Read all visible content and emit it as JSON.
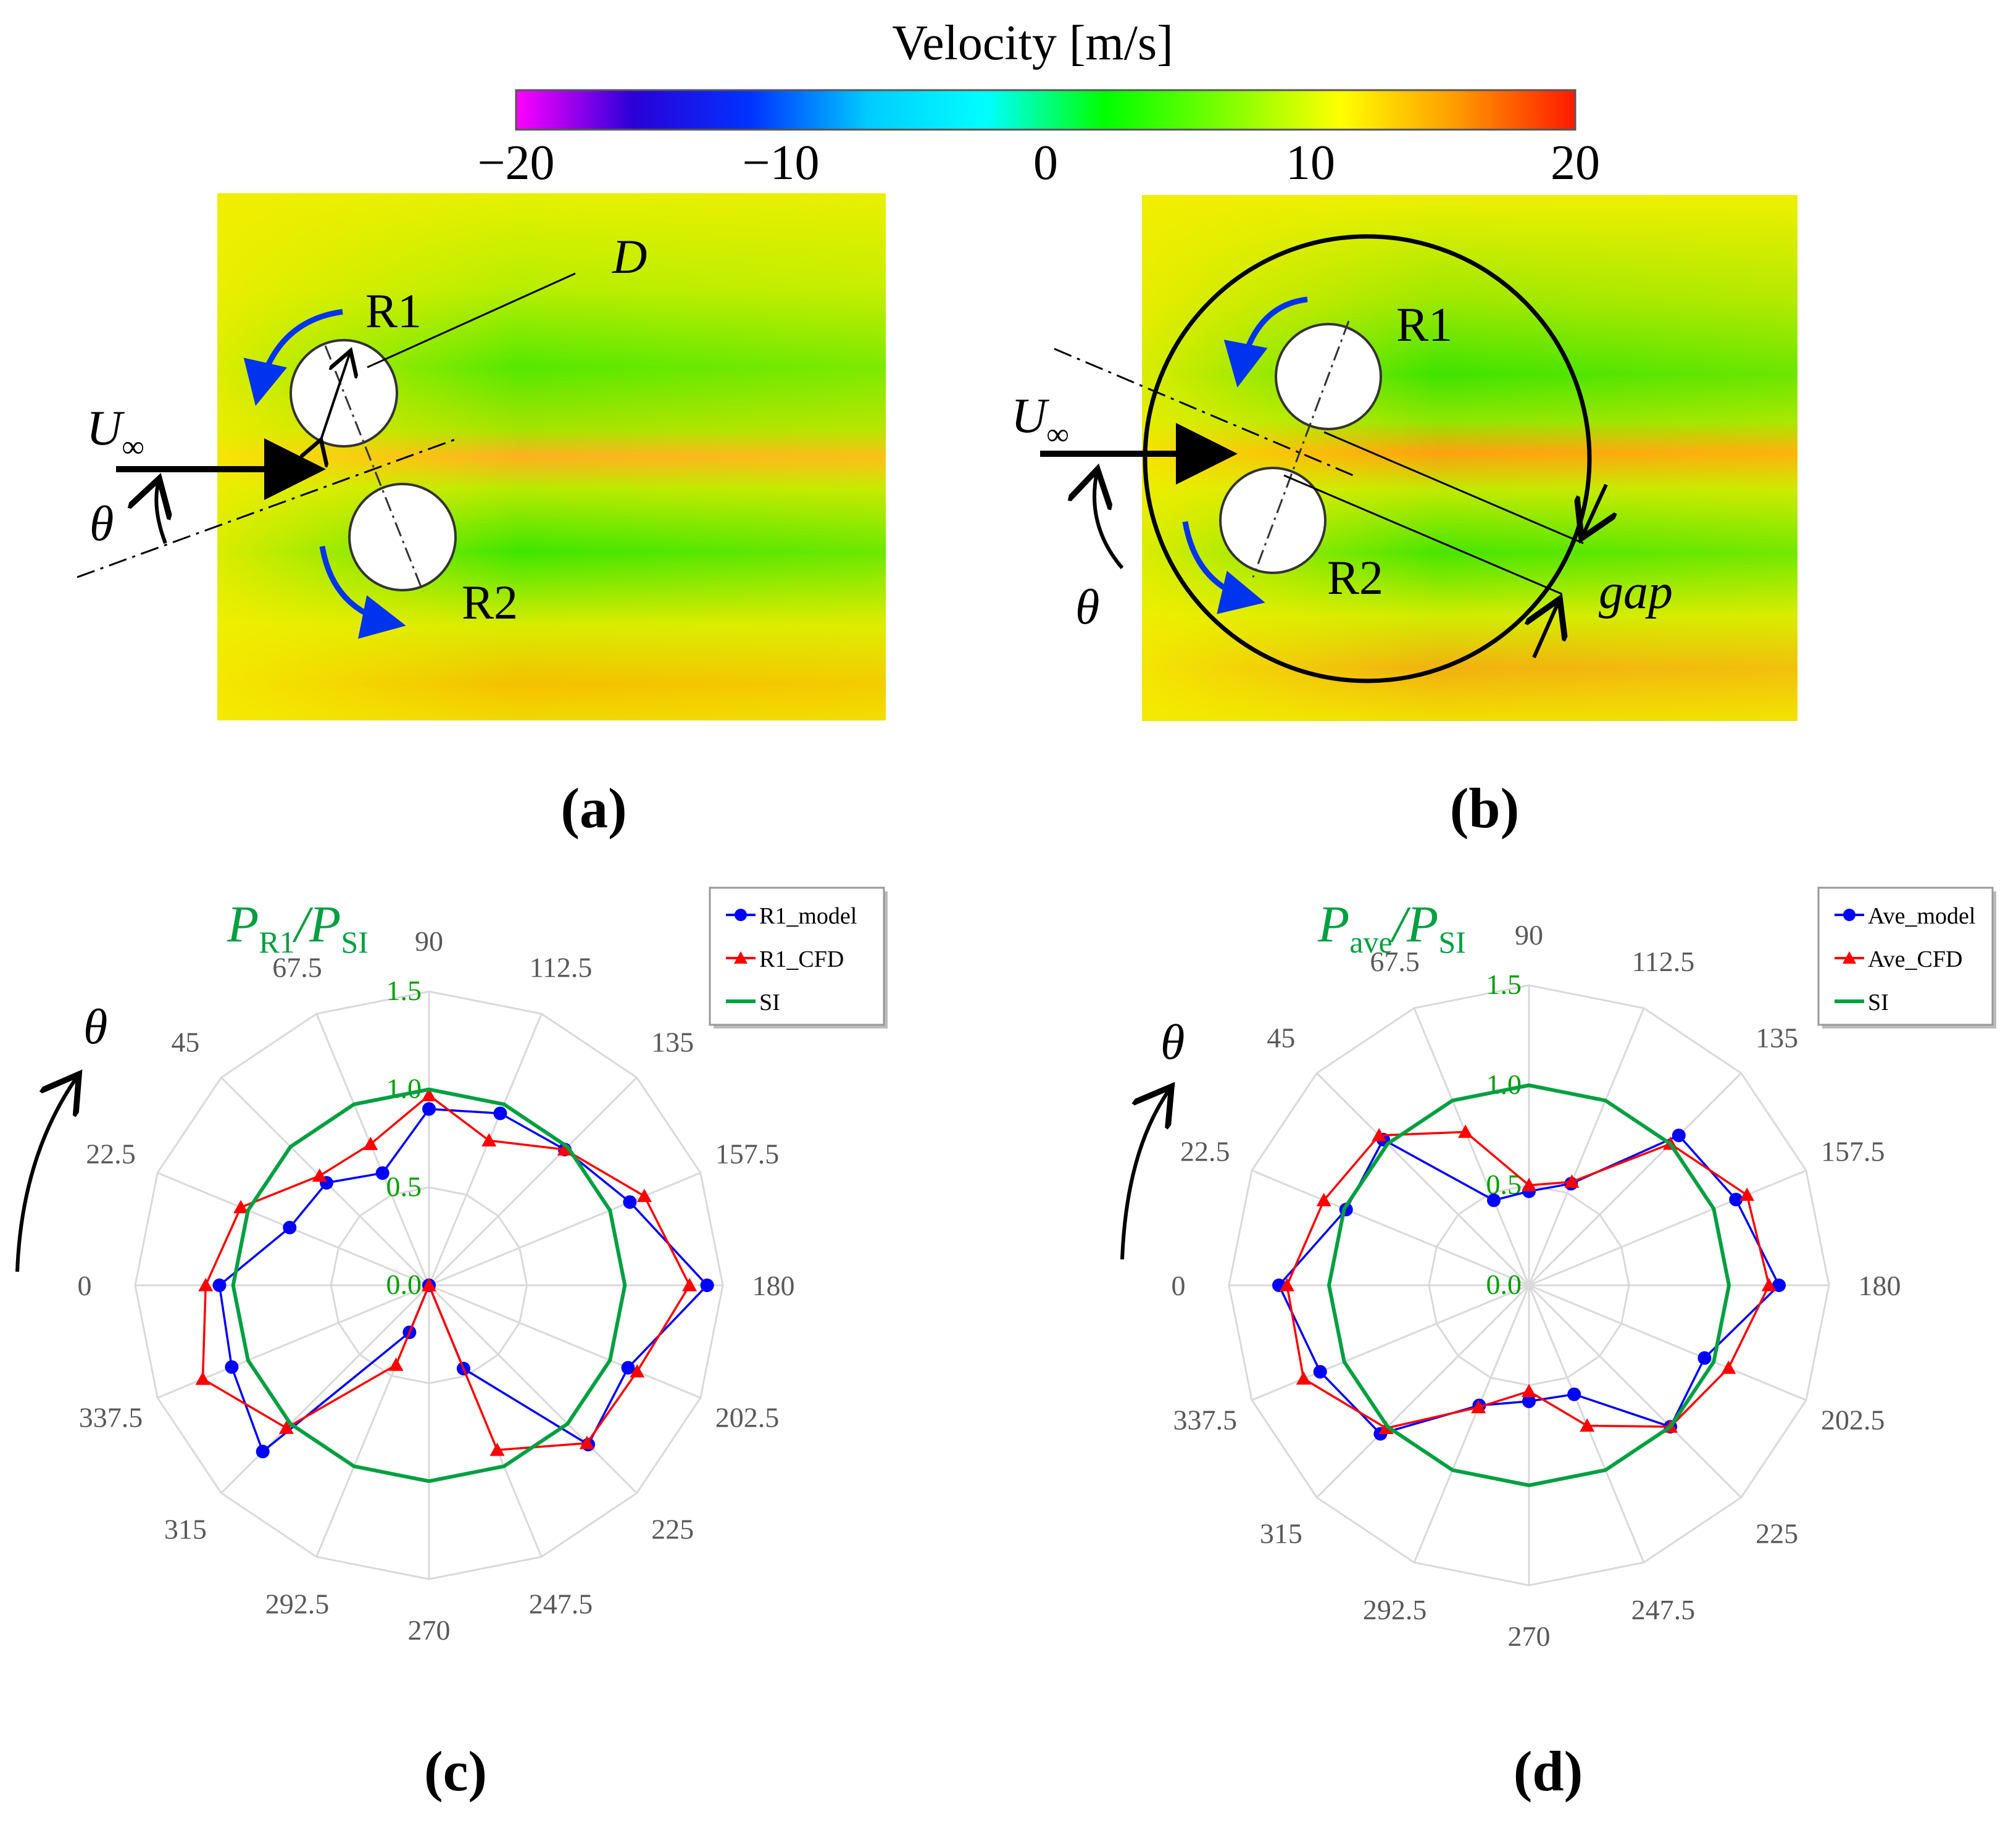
{
  "colorbar": {
    "title": "Velocity [m/s]",
    "ticks": [
      "−20",
      "−10",
      "0",
      "10",
      "20"
    ],
    "stops": [
      "#ff00ff",
      "#2a00d8",
      "#0033ff",
      "#00ccff",
      "#00ffff",
      "#00ff00",
      "#7cff00",
      "#ffff00",
      "#ff9900",
      "#ff1a00"
    ]
  },
  "panels": {
    "a": {
      "label": "(a)",
      "rotor1": "R1",
      "rotor2": "R2",
      "diameter": "D",
      "u_main": "U",
      "u_sub": "∞",
      "theta": "θ"
    },
    "b": {
      "label": "(b)",
      "rotor1": "R1",
      "rotor2": "R2",
      "gap": "gap",
      "u_main": "U",
      "u_sub": "∞",
      "theta": "θ"
    }
  },
  "colors": {
    "model": "#0000ff",
    "cfd": "#ff0000",
    "si": "#00a040",
    "ring_label": "#00a000",
    "angle_label": "#595959",
    "grid": "#d9d9d9",
    "rotation_arrow": "#0033ee"
  },
  "chart_data": [
    {
      "type": "radar",
      "panel_label": "(c)",
      "title_var": "P",
      "title_sub": "R1",
      "title_den": "P",
      "title_den_sub": "SI",
      "axis_symbol": "θ",
      "angle_labels": [
        "0",
        "22.5",
        "45",
        "67.5",
        "90",
        "112.5",
        "135",
        "157.5",
        "180",
        "202.5",
        "225",
        "247.5",
        "270",
        "292.5",
        "315",
        "337.5"
      ],
      "angles_deg": [
        0,
        22.5,
        45,
        67.5,
        90,
        112.5,
        135,
        157.5,
        180,
        202.5,
        225,
        247.5,
        270,
        292.5,
        315,
        337.5
      ],
      "ring_labels": [
        "0.0",
        "0.5",
        "1.0",
        "1.5"
      ],
      "rmax": 1.5,
      "legend": [
        "R1_model",
        "R1_CFD",
        "SI"
      ],
      "series": [
        {
          "name": "R1_model",
          "marker": "circle",
          "values": [
            1.07,
            0.77,
            0.74,
            0.62,
            0.9,
            0.95,
            0.98,
            1.11,
            1.42,
            1.1,
            1.15,
            0.46,
            0.0,
            0.26,
            1.2,
            1.09
          ]
        },
        {
          "name": "R1_CFD",
          "marker": "triangle",
          "values": [
            1.14,
            1.04,
            0.79,
            0.78,
            0.97,
            0.8,
            0.98,
            1.19,
            1.33,
            1.15,
            1.14,
            0.91,
            0.0,
            0.44,
            1.03,
            1.25
          ]
        },
        {
          "name": "SI",
          "marker": "none",
          "values": [
            1.0,
            1.0,
            1.0,
            1.0,
            1.0,
            1.0,
            1.0,
            1.0,
            1.0,
            1.0,
            1.0,
            1.0,
            1.0,
            1.0,
            1.0,
            1.0
          ]
        }
      ]
    },
    {
      "type": "radar",
      "panel_label": "(d)",
      "title_var": "P",
      "title_sub": "ave",
      "title_den": "P",
      "title_den_sub": "SI",
      "axis_symbol": "θ",
      "angle_labels": [
        "0",
        "22.5",
        "45",
        "67.5",
        "90",
        "112.5",
        "135",
        "157.5",
        "180",
        "202.5",
        "225",
        "247.5",
        "270",
        "292.5",
        "315",
        "337.5"
      ],
      "angles_deg": [
        0,
        22.5,
        45,
        67.5,
        90,
        112.5,
        135,
        157.5,
        180,
        202.5,
        225,
        247.5,
        270,
        292.5,
        315,
        337.5
      ],
      "ring_labels": [
        "0.0",
        "0.5",
        "1.0",
        "1.5"
      ],
      "rmax": 1.5,
      "legend": [
        "Ave_model",
        "Ave_CFD",
        "SI"
      ],
      "series": [
        {
          "name": "Ave_model",
          "marker": "circle",
          "values": [
            1.25,
            0.99,
            1.03,
            0.46,
            0.47,
            0.55,
            1.06,
            1.12,
            1.25,
            0.95,
            1.0,
            0.59,
            0.58,
            0.65,
            1.05,
            1.13
          ]
        },
        {
          "name": "Ave_CFD",
          "marker": "triangle",
          "values": [
            1.21,
            1.11,
            1.06,
            0.83,
            0.5,
            0.56,
            1.0,
            1.18,
            1.2,
            1.08,
            1.0,
            0.76,
            0.53,
            0.66,
            1.01,
            1.22
          ]
        },
        {
          "name": "SI",
          "marker": "none",
          "values": [
            1.0,
            1.0,
            1.0,
            1.0,
            1.0,
            1.0,
            1.0,
            1.0,
            1.0,
            1.0,
            1.0,
            1.0,
            1.0,
            1.0,
            1.0,
            1.0
          ]
        }
      ]
    }
  ]
}
